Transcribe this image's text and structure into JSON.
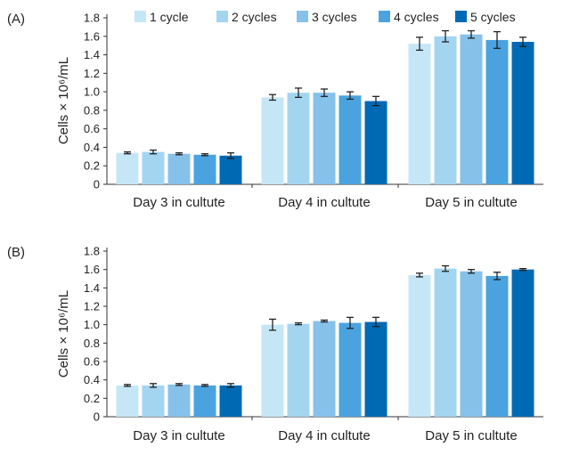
{
  "chart_data": [
    {
      "type": "bar",
      "panel": "(A)",
      "ylabel": "Cells × 10⁶/mL",
      "ylim": [
        0,
        1.8
      ],
      "yticks": [
        0,
        0.2,
        0.4,
        0.6,
        0.8,
        1.0,
        1.2,
        1.4,
        1.6,
        1.8
      ],
      "categories": [
        "Day 3 in cultute",
        "Day 4 in cultute",
        "Day 5 in cultute"
      ],
      "legend": "top",
      "grid": false,
      "series": [
        {
          "name": "1 cycle",
          "color": "#c5e6f7",
          "values": [
            0.34,
            0.94,
            1.52
          ],
          "errors": [
            0.01,
            0.03,
            0.07
          ]
        },
        {
          "name": "2 cycles",
          "color": "#a3d5f1",
          "values": [
            0.35,
            0.99,
            1.6
          ],
          "errors": [
            0.02,
            0.05,
            0.06
          ]
        },
        {
          "name": "3 cycles",
          "color": "#86c1ea",
          "values": [
            0.33,
            0.99,
            1.62
          ],
          "errors": [
            0.01,
            0.04,
            0.04
          ]
        },
        {
          "name": "4 cycles",
          "color": "#4aa3df",
          "values": [
            0.32,
            0.96,
            1.56
          ],
          "errors": [
            0.01,
            0.04,
            0.09
          ]
        },
        {
          "name": "5 cycles",
          "color": "#0069b4",
          "values": [
            0.31,
            0.9,
            1.54
          ],
          "errors": [
            0.03,
            0.05,
            0.05
          ]
        }
      ]
    },
    {
      "type": "bar",
      "panel": "(B)",
      "ylabel": "Cells × 10⁶/mL",
      "ylim": [
        0,
        1.8
      ],
      "yticks": [
        0,
        0.2,
        0.4,
        0.6,
        0.8,
        1.0,
        1.2,
        1.4,
        1.6,
        1.8
      ],
      "categories": [
        "Day 3 in cultute",
        "Day 4 in cultute",
        "Day 5 in cultute"
      ],
      "grid": false,
      "series": [
        {
          "name": "1 cycle",
          "color": "#c5e6f7",
          "values": [
            0.34,
            1.0,
            1.54
          ],
          "errors": [
            0.01,
            0.06,
            0.02
          ]
        },
        {
          "name": "2 cycles",
          "color": "#a3d5f1",
          "values": [
            0.34,
            1.01,
            1.61
          ],
          "errors": [
            0.02,
            0.01,
            0.03
          ]
        },
        {
          "name": "3 cycles",
          "color": "#86c1ea",
          "values": [
            0.35,
            1.04,
            1.58
          ],
          "errors": [
            0.01,
            0.01,
            0.02
          ]
        },
        {
          "name": "4 cycles",
          "color": "#4aa3df",
          "values": [
            0.34,
            1.02,
            1.53
          ],
          "errors": [
            0.01,
            0.06,
            0.04
          ]
        },
        {
          "name": "5 cycles",
          "color": "#0069b4",
          "values": [
            0.34,
            1.03,
            1.6
          ],
          "errors": [
            0.02,
            0.05,
            0.01
          ]
        }
      ]
    }
  ]
}
